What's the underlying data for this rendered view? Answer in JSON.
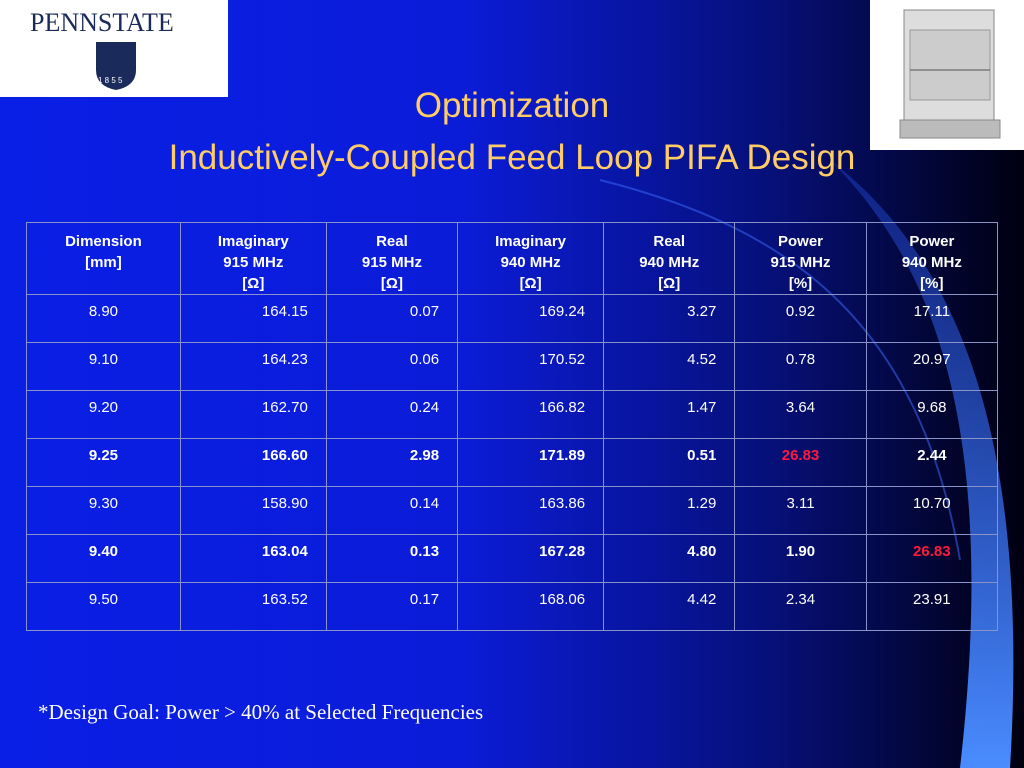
{
  "logo": {
    "name": "PENNSTATE",
    "year": "1 8 5 5"
  },
  "title": {
    "line1": "Optimization",
    "line2": "Inductively-Coupled Feed Loop PIFA Design"
  },
  "table": {
    "header": [
      [
        "Dimension",
        "[mm]"
      ],
      [
        "Imaginary",
        "915 MHz",
        "[Ω]"
      ],
      [
        "Real",
        "915 MHz",
        "[Ω]"
      ],
      [
        "Imaginary",
        "940 MHz",
        "[Ω]"
      ],
      [
        "Real",
        "940 MHz",
        "[Ω]"
      ],
      [
        "Power",
        "915 MHz",
        "[%]"
      ],
      [
        "Power",
        "940 MHz",
        "[%]"
      ]
    ],
    "highlight_color": "#ff1a3c",
    "rows": [
      {
        "cells": [
          "8.90",
          "164.15",
          "0.07",
          "169.24",
          "3.27",
          "0.92",
          "17.11"
        ],
        "bold": false,
        "highlight": []
      },
      {
        "cells": [
          "9.10",
          "164.23",
          "0.06",
          "170.52",
          "4.52",
          "0.78",
          "20.97"
        ],
        "bold": false,
        "highlight": []
      },
      {
        "cells": [
          "9.20",
          "162.70",
          "0.24",
          "166.82",
          "1.47",
          "3.64",
          "9.68"
        ],
        "bold": false,
        "highlight": []
      },
      {
        "cells": [
          "9.25",
          "166.60",
          "2.98",
          "171.89",
          "0.51",
          "26.83",
          "2.44"
        ],
        "bold": true,
        "highlight": [
          5
        ]
      },
      {
        "cells": [
          "9.30",
          "158.90",
          "0.14",
          "163.86",
          "1.29",
          "3.11",
          "10.70"
        ],
        "bold": false,
        "highlight": []
      },
      {
        "cells": [
          "9.40",
          "163.04",
          "0.13",
          "167.28",
          "4.80",
          "1.90",
          "26.83"
        ],
        "bold": true,
        "highlight": [
          6
        ]
      },
      {
        "cells": [
          "9.50",
          "163.52",
          "0.17",
          "168.06",
          "4.42",
          "2.34",
          "23.91"
        ],
        "bold": false,
        "highlight": []
      }
    ]
  },
  "footnote": "*Design Goal: Power > 40% at Selected Frequencies"
}
